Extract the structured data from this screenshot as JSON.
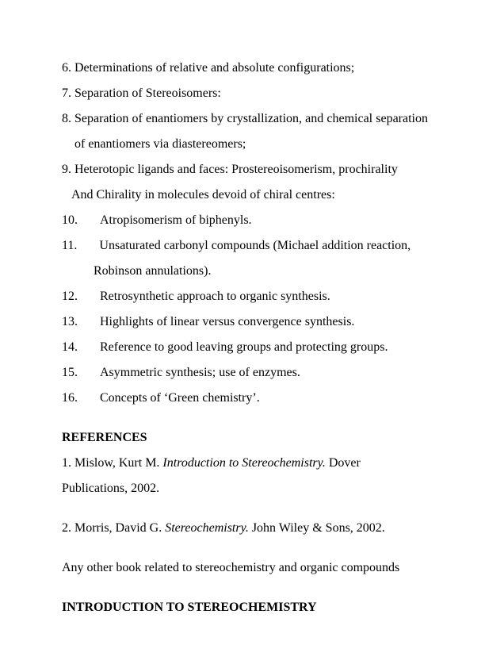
{
  "page": {
    "background_color": "#ffffff",
    "text_color": "#000000",
    "font_family": "Times New Roman",
    "base_fontsize": 16,
    "line_height": 2.0
  },
  "list": {
    "items": [
      {
        "num": "6.",
        "text": "Determinations of relative and absolute configurations;"
      },
      {
        "num": "7.",
        "text": "Separation of Stereoisomers:"
      },
      {
        "num": "8.",
        "text": "Separation of enantiomers by crystallization, and chemical separation of enantiomers via diastereomers;"
      },
      {
        "num": "9.",
        "text": "Heterotopic ligands and faces: Prostereoisomerism, prochirality",
        "cont": "And Chirality in molecules devoid of chiral centres:"
      },
      {
        "num": "10.",
        "text": "Atropisomerism of biphenyls."
      },
      {
        "num": "11.",
        "text": "Unsaturated carbonyl compounds (Michael addition reaction,",
        "cont": "Robinson annulations)."
      },
      {
        "num": "12.",
        "text": "Retrosynthetic approach to organic synthesis."
      },
      {
        "num": "13.",
        "text": "Highlights of linear versus convergence synthesis."
      },
      {
        "num": "14.",
        "text": " Reference to good leaving groups and protecting groups."
      },
      {
        "num": "15.",
        "text": " Asymmetric synthesis; use of enzymes."
      },
      {
        "num": "16.",
        "text": "Concepts of ‘Green chemistry’."
      }
    ]
  },
  "references": {
    "heading": "REFERENCES",
    "entries": [
      {
        "prefix": "1. Mislow, Kurt M. ",
        "title": "Introduction to Stereochemistry.",
        "suffix": " Dover Publications, 2002."
      },
      {
        "prefix": "2. Morris, David G. ",
        "title": "Stereochemistry.",
        "suffix": " John Wiley & Sons, 2002."
      }
    ],
    "note": "Any other book related to stereochemistry and organic compounds"
  },
  "intro_heading": "INTRODUCTION TO STEREOCHEMISTRY"
}
